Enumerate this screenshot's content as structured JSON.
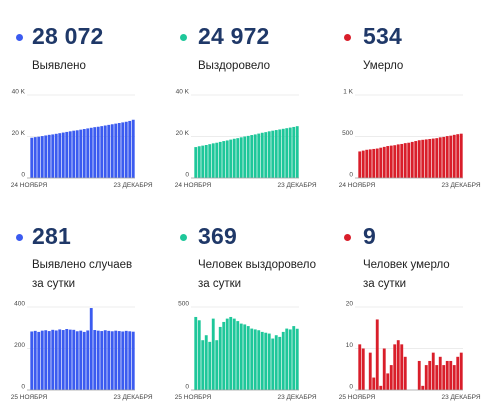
{
  "panels": [
    {
      "bullet_color": "#3b5bf0",
      "value": "28 072",
      "label_lines": [
        "Выявлено"
      ],
      "chart_data": {
        "type": "bar",
        "color": "#3b5bf0",
        "ylim": [
          0,
          40000
        ],
        "yticks": [
          {
            "value": 0,
            "label": "0"
          },
          {
            "value": 20000,
            "label": "20 K"
          },
          {
            "value": 40000,
            "label": "40 K"
          }
        ],
        "xlabel_start": "24 НОЯБРЯ",
        "xlabel_end": "23 ДЕКАБРЯ",
        "values": [
          19400,
          19700,
          19900,
          20200,
          20500,
          20800,
          21000,
          21300,
          21600,
          21900,
          22200,
          22500,
          22800,
          23000,
          23300,
          23600,
          23900,
          24200,
          24500,
          24700,
          25000,
          25300,
          25600,
          25900,
          26200,
          26500,
          26800,
          27100,
          27500,
          28072
        ]
      }
    },
    {
      "bullet_color": "#1ec79a",
      "value": "24 972",
      "label_lines": [
        "Выздоровело"
      ],
      "chart_data": {
        "type": "bar",
        "color": "#1ec79a",
        "ylim": [
          0,
          40000
        ],
        "yticks": [
          {
            "value": 0,
            "label": "0"
          },
          {
            "value": 20000,
            "label": "20 K"
          },
          {
            "value": 40000,
            "label": "40 K"
          }
        ],
        "xlabel_start": "24 НОЯБРЯ",
        "xlabel_end": "23 ДЕКАБРЯ",
        "values": [
          14900,
          15300,
          15600,
          15900,
          16300,
          16700,
          17000,
          17400,
          17800,
          18100,
          18500,
          18900,
          19200,
          19600,
          20000,
          20300,
          20700,
          21000,
          21400,
          21800,
          22100,
          22500,
          22800,
          23100,
          23400,
          23700,
          24000,
          24300,
          24600,
          24972
        ]
      }
    },
    {
      "bullet_color": "#d91e2a",
      "value": "534",
      "label_lines": [
        "Умерло"
      ],
      "chart_data": {
        "type": "bar",
        "color": "#d91e2a",
        "ylim": [
          0,
          1000
        ],
        "yticks": [
          {
            "value": 0,
            "label": "0"
          },
          {
            "value": 500,
            "label": "500"
          },
          {
            "value": 1000,
            "label": "1 K"
          }
        ],
        "xlabel_start": "24 НОЯБРЯ",
        "xlabel_end": "23 ДЕКАБРЯ",
        "values": [
          320,
          330,
          340,
          345,
          350,
          355,
          365,
          375,
          385,
          390,
          395,
          405,
          410,
          420,
          425,
          435,
          445,
          455,
          460,
          465,
          470,
          475,
          480,
          490,
          495,
          505,
          510,
          520,
          528,
          534
        ]
      }
    },
    {
      "bullet_color": "#3b5bf0",
      "value": "281",
      "label_lines": [
        "Выявлено случаев",
        "за сутки"
      ],
      "chart_data": {
        "type": "bar",
        "color": "#3b5bf0",
        "ylim": [
          0,
          400
        ],
        "yticks": [
          {
            "value": 0,
            "label": "0"
          },
          {
            "value": 200,
            "label": "200"
          },
          {
            "value": 400,
            "label": "400"
          }
        ],
        "xlabel_start": "25 НОЯБРЯ",
        "xlabel_end": "23 ДЕКАБРЯ",
        "values": [
          282,
          285,
          280,
          286,
          288,
          284,
          290,
          287,
          292,
          289,
          294,
          291,
          290,
          283,
          286,
          280,
          287,
          395,
          289,
          286,
          284,
          288,
          285,
          283,
          286,
          284,
          282,
          285,
          283,
          281
        ]
      }
    },
    {
      "bullet_color": "#1ec79a",
      "value": "369",
      "label_lines": [
        "Человек выздоровело",
        "за сутки"
      ],
      "chart_data": {
        "type": "bar",
        "color": "#1ec79a",
        "ylim": [
          0,
          500
        ],
        "yticks": [
          {
            "value": 0,
            "label": "0"
          },
          {
            "value": 500,
            "label": "500"
          }
        ],
        "xlabel_start": "25 НОЯБРЯ",
        "xlabel_end": "23 ДЕКАБРЯ",
        "values": [
          440,
          420,
          300,
          330,
          290,
          430,
          300,
          380,
          410,
          430,
          440,
          430,
          415,
          400,
          395,
          385,
          370,
          365,
          360,
          350,
          345,
          340,
          310,
          330,
          320,
          350,
          370,
          365,
          385,
          369
        ]
      }
    },
    {
      "bullet_color": "#d91e2a",
      "value": "9",
      "label_lines": [
        "Человек умерло",
        "за сутки"
      ],
      "chart_data": {
        "type": "bar",
        "color": "#d91e2a",
        "ylim": [
          0,
          20
        ],
        "yticks": [
          {
            "value": 0,
            "label": "0"
          },
          {
            "value": 10,
            "label": "10"
          },
          {
            "value": 20,
            "label": "20"
          }
        ],
        "xlabel_start": "25 НОЯБРЯ",
        "xlabel_end": "23 ДЕКАБРЯ",
        "values": [
          11,
          10,
          0,
          9,
          3,
          17,
          1,
          10,
          4,
          6,
          11,
          12,
          11,
          8,
          0,
          0,
          0,
          7,
          1,
          6,
          7,
          9,
          6,
          8,
          6,
          7,
          7,
          6,
          8,
          9
        ]
      }
    }
  ]
}
